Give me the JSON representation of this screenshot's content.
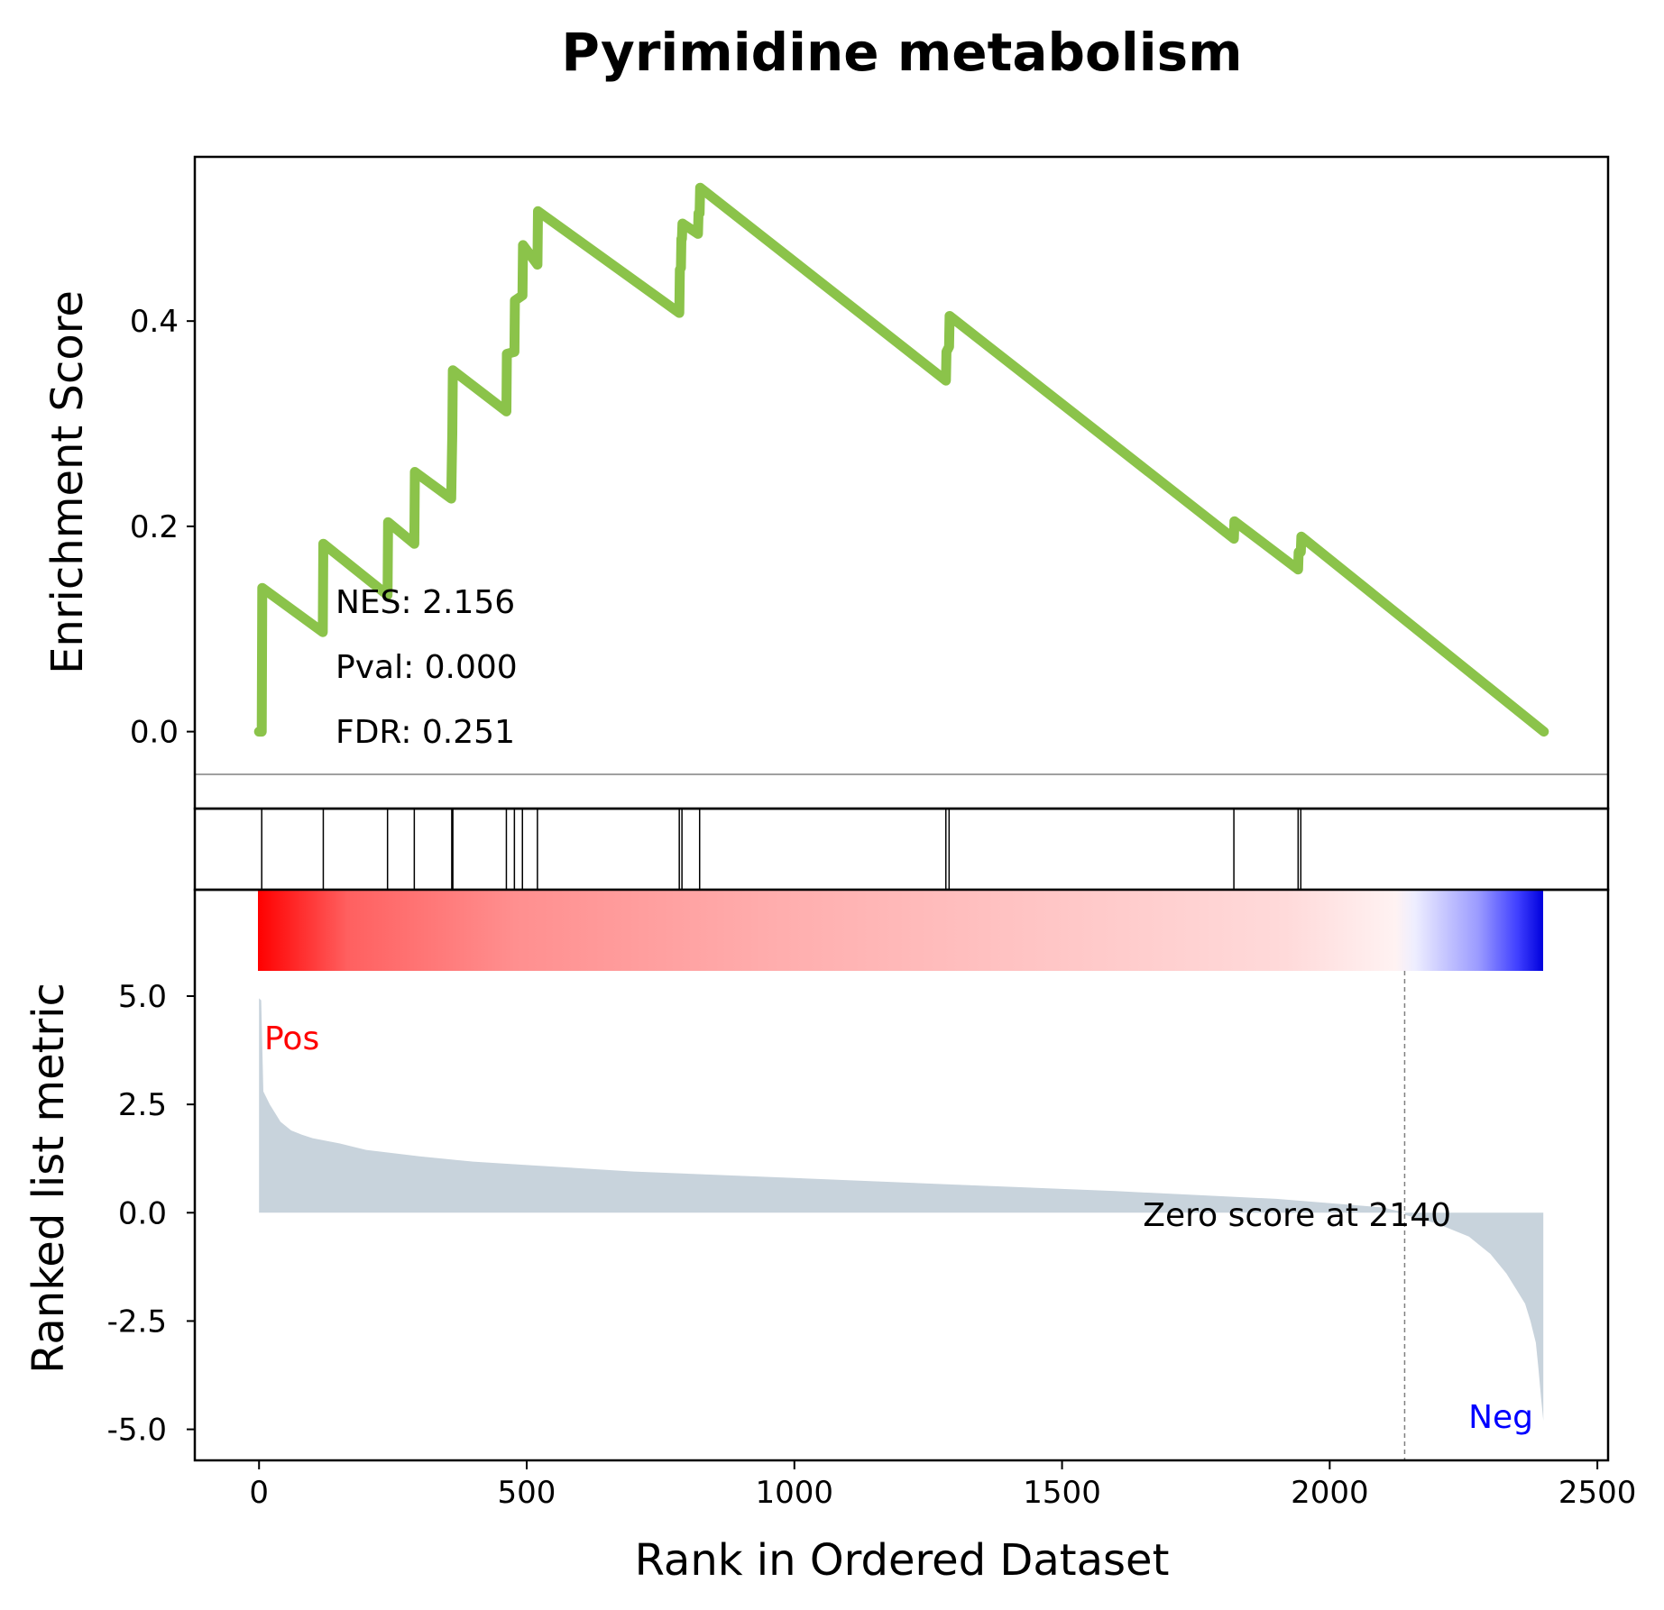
{
  "chart_data": {
    "type": "line",
    "title": "Pyrimidine metabolism",
    "xlabel": "Rank in Ordered Dataset",
    "xlim": [
      -120,
      2520
    ],
    "xticks": [
      0,
      500,
      1000,
      1500,
      2000,
      2500
    ],
    "xtick_labels": [
      "0",
      "500",
      "1000",
      "1500",
      "2000",
      "2500"
    ],
    "enrichment": {
      "ylabel": "Enrichment Score",
      "ylim": [
        -0.075,
        0.56
      ],
      "yticks": [
        0.0,
        0.2,
        0.4
      ],
      "ytick_labels": [
        "0.0",
        "0.2",
        "0.4"
      ],
      "line_color": "#8bc34a",
      "zero_line_color": "#808080",
      "series": [
        {
          "x": [
            0,
            5,
            6,
            119,
            120,
            240,
            241,
            290,
            291,
            359,
            360,
            361,
            362,
            462,
            463,
            477,
            478,
            492,
            493,
            520,
            521,
            785,
            786,
            788,
            789,
            790,
            791,
            820,
            821,
            823,
            824,
            1283,
            1284,
            1289,
            1290,
            1821,
            1822,
            1941,
            1942,
            1946,
            1947,
            2400
          ],
          "y": [
            0.0,
            0.0,
            0.14,
            0.097,
            0.183,
            0.133,
            0.204,
            0.183,
            0.253,
            0.227,
            0.26,
            0.29,
            0.352,
            0.312,
            0.368,
            0.37,
            0.42,
            0.425,
            0.474,
            0.455,
            0.507,
            0.408,
            0.45,
            0.452,
            0.48,
            0.48,
            0.495,
            0.485,
            0.505,
            0.505,
            0.53,
            0.342,
            0.37,
            0.375,
            0.405,
            0.188,
            0.205,
            0.158,
            0.175,
            0.175,
            0.19,
            0.0
          ]
        }
      ],
      "annotations": [
        "NES: 2.156",
        "Pval: 0.000",
        "FDR: 0.251"
      ]
    },
    "hits": [
      5,
      120,
      240,
      290,
      360,
      362,
      462,
      477,
      492,
      520,
      785,
      790,
      823,
      1283,
      1289,
      1821,
      1941,
      1946
    ],
    "ranked": {
      "ylabel": "Ranked list metric",
      "ylim": [
        -5.3,
        5.0
      ],
      "yticks": [
        5.0,
        2.5,
        0.0,
        -2.5,
        -5.0
      ],
      "ytick_labels": [
        "5.0",
        "2.5",
        "0.0",
        "-2.5",
        "-5.0"
      ],
      "fill_color": "#c8d3dc",
      "x": [
        0,
        4,
        8,
        20,
        40,
        60,
        80,
        100,
        150,
        200,
        300,
        400,
        500,
        700,
        1000,
        1300,
        1600,
        1900,
        2100,
        2140,
        2141,
        2200,
        2260,
        2300,
        2330,
        2350,
        2365,
        2375,
        2385,
        2390,
        2395,
        2399
      ],
      "y": [
        4.95,
        4.9,
        2.8,
        2.5,
        2.1,
        1.9,
        1.8,
        1.72,
        1.6,
        1.45,
        1.3,
        1.18,
        1.1,
        0.95,
        0.8,
        0.65,
        0.5,
        0.32,
        0.12,
        0.0,
        -0.05,
        -0.25,
        -0.55,
        -0.95,
        -1.4,
        -1.8,
        -2.1,
        -2.5,
        -3.0,
        -3.6,
        -4.3,
        -4.8
      ],
      "zero_cross": 2140,
      "zero_label": "Zero score at 2140",
      "pos_label": "Pos",
      "neg_label": "Neg",
      "pos_color": "#ff0000",
      "neg_color": "#0000ff",
      "zero_line_color": "#808080"
    },
    "grid": false,
    "legend": "none"
  }
}
